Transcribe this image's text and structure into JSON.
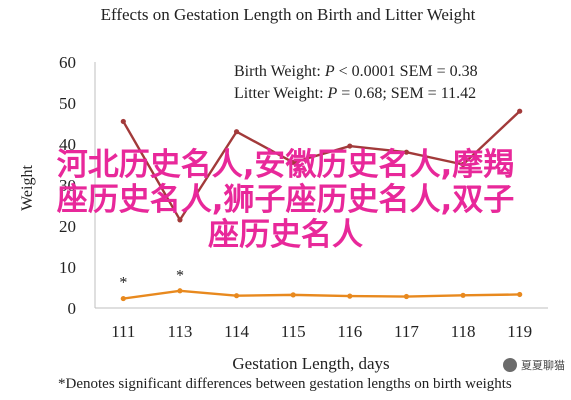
{
  "chart_data": {
    "type": "line",
    "title": "Effects on Gestation Length on Birth and Litter Weight",
    "xlabel": "Gestation Length, days",
    "ylabel": "Weight",
    "categories": [
      "111",
      "113",
      "114",
      "115",
      "116",
      "117",
      "118",
      "119"
    ],
    "ylim": [
      0,
      60
    ],
    "yticks": [
      "0",
      "10",
      "20",
      "30",
      "40",
      "50",
      "60"
    ],
    "grid": false,
    "series": [
      {
        "name": "Birth Weight",
        "color": "#a23a3a",
        "values": [
          45.5,
          21.5,
          43,
          35.5,
          39.5,
          38,
          35,
          48
        ]
      },
      {
        "name": "Litter Weight",
        "color": "#e8891e",
        "values": [
          2.3,
          4.2,
          3,
          3.2,
          2.9,
          2.8,
          3.1,
          3.3
        ]
      }
    ],
    "annotations": [
      {
        "text": "*",
        "category": "111",
        "value": 6.5
      },
      {
        "text": "*",
        "category": "113",
        "value": 8.2
      }
    ],
    "stats": [
      {
        "label": "Birth Weight: ",
        "p": "P",
        "rest": " < 0.0001 SEM = 0.38"
      },
      {
        "label": "Litter Weight: ",
        "p": "P",
        "rest": " = 0.68; SEM = 11.42"
      }
    ],
    "footnote": "*Denotes significant differences between gestation lengths on birth weights"
  },
  "overlay_text": {
    "line1": "河北历史名人,安徽历史名人,摩羯",
    "line2": "座历史名人,狮子座历史名人,双子",
    "line3": "座历史名人"
  },
  "watermark": {
    "text": "夏夏聊猫"
  }
}
